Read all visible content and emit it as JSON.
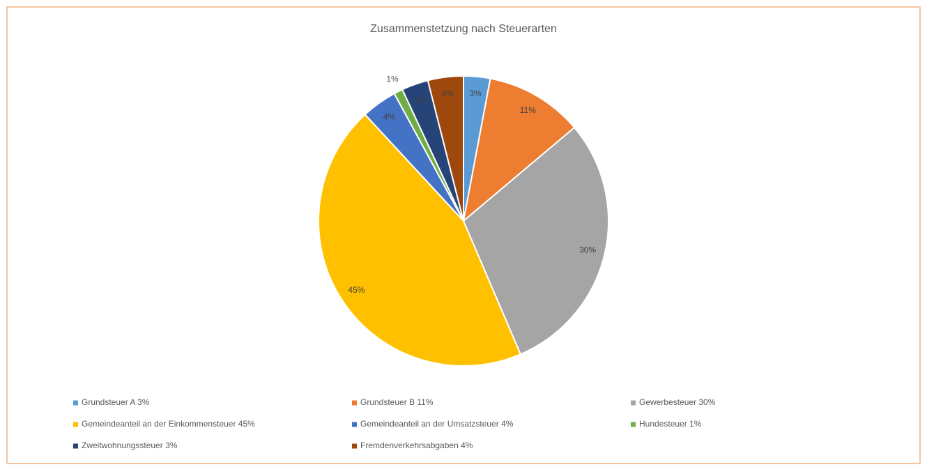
{
  "chart_data": {
    "type": "pie",
    "title": "Zusammenstetzung nach Steuerarten",
    "categories": [
      "Grundsteuer A 3%",
      "Grundsteuer B 11%",
      "Gewerbesteuer 30%",
      "Gemeindeanteil an der Einkommensteuer 45%",
      "Gemeindeanteil an der Umsatzsteuer 4%",
      "Hundesteuer 1%",
      "Zweitwohnungssteuer 3%",
      "Fremdenverkehrsabgaben 4%"
    ],
    "values": [
      3,
      11,
      30,
      45,
      4,
      1,
      3,
      4
    ],
    "value_labels": [
      "3%",
      "11%",
      "30%",
      "45%",
      "4%",
      "1%",
      "3%",
      "4%"
    ],
    "colors": [
      "#5b9bd5",
      "#ed7d31",
      "#a5a5a5",
      "#ffc000",
      "#4472c4",
      "#70ad47",
      "#264478",
      "#9e480e"
    ],
    "legend": "bottom"
  }
}
